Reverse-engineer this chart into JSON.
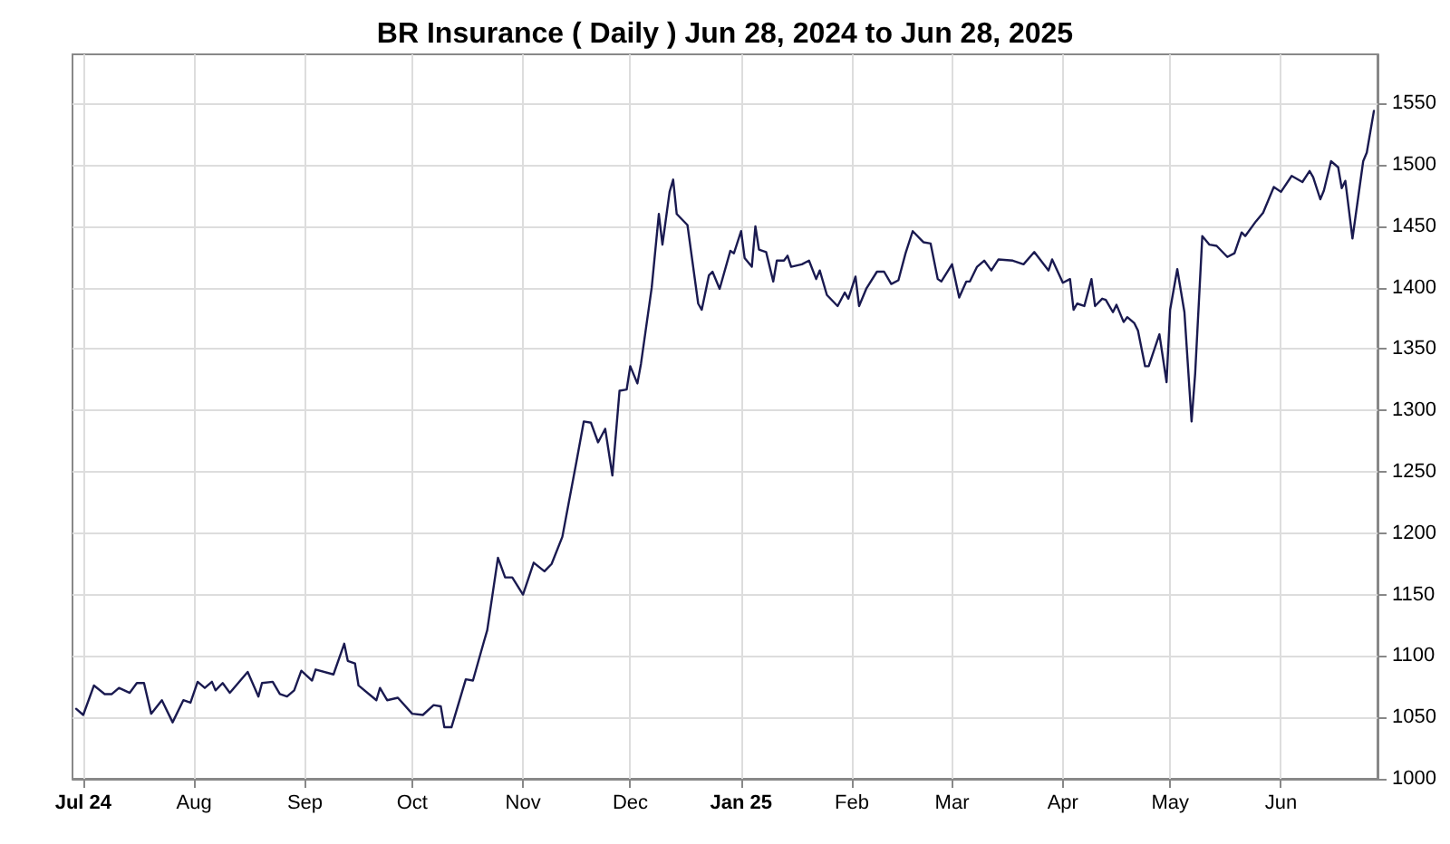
{
  "chart_data": {
    "type": "line",
    "title": "BR Insurance ( Daily ) Jun 28, 2024 to Jun 28, 2025",
    "x": [
      "2024-06-29",
      "2024-07-01",
      "2024-07-04",
      "2024-07-07",
      "2024-07-09",
      "2024-07-11",
      "2024-07-14",
      "2024-07-16",
      "2024-07-18",
      "2024-07-20",
      "2024-07-23",
      "2024-07-26",
      "2024-07-29",
      "2024-07-31",
      "2024-08-02",
      "2024-08-04",
      "2024-08-06",
      "2024-08-07",
      "2024-08-09",
      "2024-08-11",
      "2024-08-16",
      "2024-08-19",
      "2024-08-20",
      "2024-08-23",
      "2024-08-25",
      "2024-08-27",
      "2024-08-29",
      "2024-08-31",
      "2024-09-03",
      "2024-09-04",
      "2024-09-09",
      "2024-09-12",
      "2024-09-13",
      "2024-09-15",
      "2024-09-16",
      "2024-09-21",
      "2024-09-22",
      "2024-09-24",
      "2024-09-27",
      "2024-10-01",
      "2024-10-04",
      "2024-10-07",
      "2024-10-09",
      "2024-10-10",
      "2024-10-12",
      "2024-10-16",
      "2024-10-18",
      "2024-10-21",
      "2024-10-22",
      "2024-10-25",
      "2024-10-27",
      "2024-10-29",
      "2024-11-01",
      "2024-11-04",
      "2024-11-07",
      "2024-11-09",
      "2024-11-12",
      "2024-11-16",
      "2024-11-18",
      "2024-11-20",
      "2024-11-22",
      "2024-11-24",
      "2024-11-26",
      "2024-11-28",
      "2024-11-30",
      "2024-12-01",
      "2024-12-03",
      "2024-12-04",
      "2024-12-07",
      "2024-12-09",
      "2024-12-10",
      "2024-12-12",
      "2024-12-13",
      "2024-12-14",
      "2024-12-17",
      "2024-12-20",
      "2024-12-21",
      "2024-12-23",
      "2024-12-24",
      "2024-12-26",
      "2024-12-29",
      "2024-12-30",
      "2025-01-01",
      "2025-01-02",
      "2025-01-04",
      "2025-01-05",
      "2025-01-06",
      "2025-01-08",
      "2025-01-10",
      "2025-01-11",
      "2025-01-13",
      "2025-01-14",
      "2025-01-15",
      "2025-01-18",
      "2025-01-20",
      "2025-01-22",
      "2025-01-23",
      "2025-01-25",
      "2025-01-28",
      "2025-01-30",
      "2025-01-31",
      "2025-02-02",
      "2025-02-03",
      "2025-02-05",
      "2025-02-08",
      "2025-02-10",
      "2025-02-12",
      "2025-02-14",
      "2025-02-16",
      "2025-02-18",
      "2025-02-21",
      "2025-02-23",
      "2025-02-25",
      "2025-02-26",
      "2025-03-01",
      "2025-03-03",
      "2025-03-05",
      "2025-03-06",
      "2025-03-08",
      "2025-03-10",
      "2025-03-12",
      "2025-03-14",
      "2025-03-18",
      "2025-03-21",
      "2025-03-24",
      "2025-03-28",
      "2025-03-29",
      "2025-04-01",
      "2025-04-03",
      "2025-04-04",
      "2025-04-05",
      "2025-04-07",
      "2025-04-09",
      "2025-04-10",
      "2025-04-12",
      "2025-04-13",
      "2025-04-15",
      "2025-04-16",
      "2025-04-18",
      "2025-04-19",
      "2025-04-21",
      "2025-04-22",
      "2025-04-24",
      "2025-04-25",
      "2025-04-28",
      "2025-04-30",
      "2025-05-01",
      "2025-05-03",
      "2025-05-05",
      "2025-05-07",
      "2025-05-08",
      "2025-05-10",
      "2025-05-12",
      "2025-05-14",
      "2025-05-17",
      "2025-05-19",
      "2025-05-21",
      "2025-05-22",
      "2025-05-25",
      "2025-05-27",
      "2025-05-30",
      "2025-06-01",
      "2025-06-04",
      "2025-06-07",
      "2025-06-09",
      "2025-06-10",
      "2025-06-12",
      "2025-06-13",
      "2025-06-15",
      "2025-06-17",
      "2025-06-18",
      "2025-06-19",
      "2025-06-21",
      "2025-06-24",
      "2025-06-25",
      "2025-06-27"
    ],
    "series": [
      {
        "color": "#1a1a50",
        "values": [
          1057,
          1052,
          1076,
          1069,
          1069,
          1074,
          1070,
          1078,
          1078,
          1053,
          1064,
          1046,
          1064,
          1062,
          1079,
          1074,
          1079,
          1072,
          1078,
          1070,
          1087,
          1067,
          1078,
          1079,
          1069,
          1067,
          1072,
          1088,
          1080,
          1089,
          1085,
          1110,
          1096,
          1094,
          1076,
          1064,
          1074,
          1064,
          1066,
          1053,
          1052,
          1060,
          1059,
          1042,
          1042,
          1081,
          1080,
          1111,
          1121,
          1180,
          1164,
          1164,
          1150,
          1176,
          1169,
          1175,
          1197,
          1259,
          1291,
          1290,
          1274,
          1285,
          1247,
          1316,
          1317,
          1336,
          1322,
          1338,
          1400,
          1460,
          1435,
          1478,
          1488,
          1460,
          1451,
          1387,
          1382,
          1410,
          1413,
          1399,
          1430,
          1428,
          1446,
          1424,
          1417,
          1450,
          1431,
          1429,
          1405,
          1422,
          1422,
          1426,
          1417,
          1419,
          1422,
          1407,
          1414,
          1394,
          1385,
          1396,
          1391,
          1409,
          1385,
          1399,
          1413,
          1413,
          1403,
          1406,
          1428,
          1446,
          1437,
          1436,
          1407,
          1405,
          1419,
          1392,
          1405,
          1405,
          1417,
          1422,
          1414,
          1423,
          1422,
          1419,
          1429,
          1414,
          1423,
          1404,
          1407,
          1382,
          1387,
          1385,
          1407,
          1385,
          1391,
          1390,
          1380,
          1386,
          1372,
          1376,
          1371,
          1365,
          1336,
          1336,
          1362,
          1323,
          1382,
          1415,
          1380,
          1291,
          1330,
          1442,
          1435,
          1434,
          1425,
          1428,
          1445,
          1442,
          1454,
          1461,
          1482,
          1478,
          1491,
          1486,
          1495,
          1490,
          1472,
          1479,
          1503,
          1498,
          1481,
          1487,
          1440,
          1503,
          1510,
          1544
        ]
      }
    ],
    "xlim": [
      "2024-06-28",
      "2025-06-28"
    ],
    "xticks": [
      {
        "value": "2024-07-01",
        "label": "Jul 24"
      },
      {
        "value": "2024-08-01",
        "label": "Aug"
      },
      {
        "value": "2024-09-01",
        "label": "Sep"
      },
      {
        "value": "2024-10-01",
        "label": "Oct"
      },
      {
        "value": "2024-11-01",
        "label": "Nov"
      },
      {
        "value": "2024-12-01",
        "label": "Dec"
      },
      {
        "value": "2025-01-01",
        "label": "Jan 25"
      },
      {
        "value": "2025-02-01",
        "label": "Feb"
      },
      {
        "value": "2025-03-01",
        "label": "Mar"
      },
      {
        "value": "2025-04-01",
        "label": "Apr"
      },
      {
        "value": "2025-05-01",
        "label": "May"
      },
      {
        "value": "2025-06-01",
        "label": "Jun"
      }
    ],
    "ylim": [
      1000,
      1590
    ],
    "yticks": [
      1000,
      1050,
      1100,
      1150,
      1200,
      1250,
      1300,
      1350,
      1400,
      1450,
      1500,
      1550
    ],
    "grid": true,
    "marker": "none",
    "line_style": "solid"
  }
}
